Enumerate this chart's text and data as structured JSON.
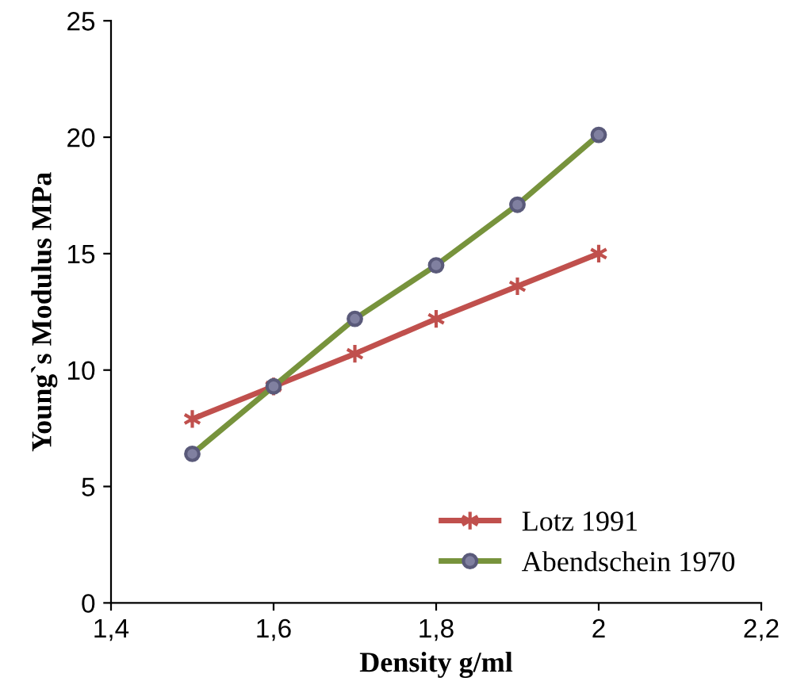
{
  "chart_data": {
    "type": "line",
    "xlabel": "Density g/ml",
    "ylabel": "Young`s Modulus MPa",
    "x": [
      1.5,
      1.6,
      1.7,
      1.8,
      1.9,
      2.0
    ],
    "series": [
      {
        "name": "Lotz 1991",
        "color": "#c0504d",
        "marker": "cross",
        "values": [
          7.9,
          9.3,
          10.7,
          12.2,
          13.6,
          15.0
        ]
      },
      {
        "name": "Abendschein 1970",
        "color": "#77933c",
        "marker": "circle",
        "values": [
          6.4,
          9.3,
          12.2,
          14.5,
          17.1,
          20.1
        ]
      }
    ],
    "xlim": [
      1.4,
      2.2
    ],
    "xticks": [
      {
        "value": 1.4,
        "label": "1,4"
      },
      {
        "value": 1.6,
        "label": "1,6"
      },
      {
        "value": 1.8,
        "label": "1,8"
      },
      {
        "value": 2.0,
        "label": "2"
      },
      {
        "value": 2.2,
        "label": "2,2"
      }
    ],
    "ylim": [
      0,
      25
    ],
    "yticks": [
      0,
      5,
      10,
      15,
      20,
      25
    ],
    "grid": false,
    "legend": "bottom right",
    "line_style": "solid"
  }
}
